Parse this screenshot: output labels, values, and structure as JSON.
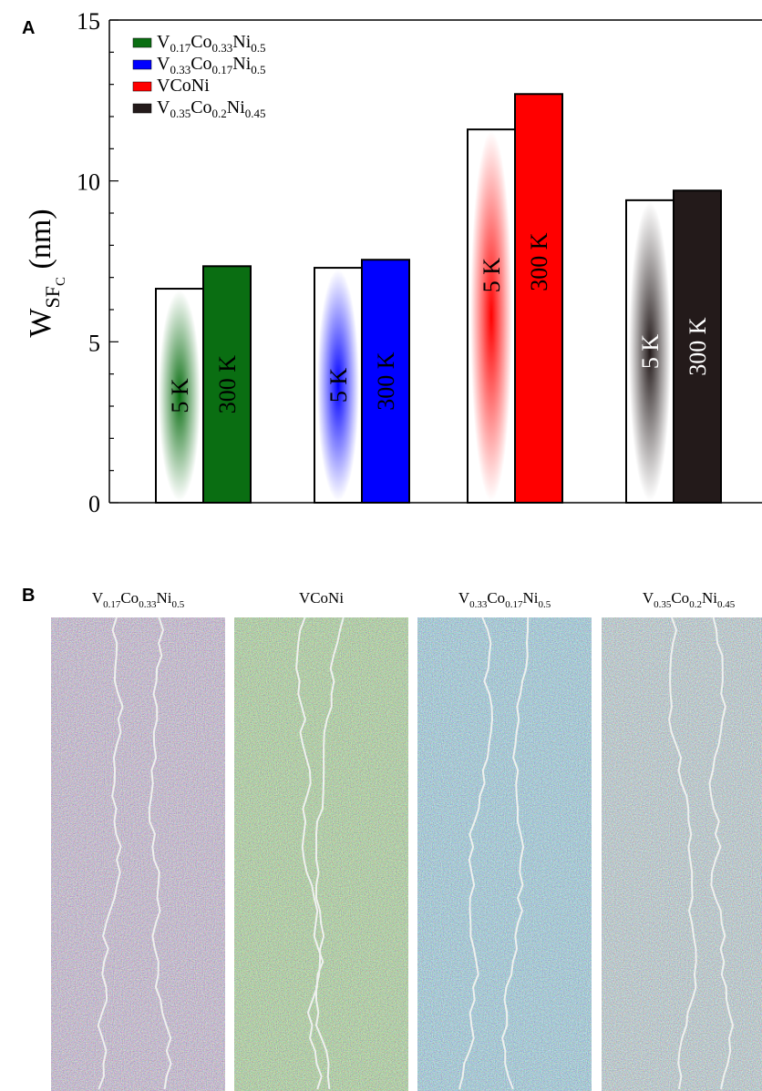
{
  "panels": {
    "a": "A",
    "b": "B"
  },
  "colors": {
    "green": "#0a6e12",
    "blue": "#0000ff",
    "red": "#ff0000",
    "black": "#231a1a",
    "trace": "#eef0ee"
  },
  "chart_data": {
    "type": "bar",
    "ylabel": {
      "main": "W",
      "sub1": "SF",
      "sub2": "C",
      "unit": " (nm)"
    },
    "ylim": [
      0,
      15
    ],
    "yticks": [
      0,
      5,
      10,
      15
    ],
    "bar_labels": [
      "5 K",
      "300 K"
    ],
    "legend_position": "top-left",
    "series": [
      {
        "name": "V0.17Co0.33Ni0.5",
        "name_parts": [
          [
            "V",
            ""
          ],
          [
            "0.17",
            "s"
          ],
          [
            "Co",
            ""
          ],
          [
            "0.33",
            "s"
          ],
          [
            "Ni",
            ""
          ],
          [
            "0.5",
            "s"
          ]
        ],
        "color": "#0a6e12",
        "values": [
          6.65,
          7.35
        ]
      },
      {
        "name": "V0.33Co0.17Ni0.5",
        "name_parts": [
          [
            "V",
            ""
          ],
          [
            "0.33",
            "s"
          ],
          [
            "Co",
            ""
          ],
          [
            "0.17",
            "s"
          ],
          [
            "Ni",
            ""
          ],
          [
            "0.5",
            "s"
          ]
        ],
        "color": "#0000ff",
        "values": [
          7.3,
          7.55
        ]
      },
      {
        "name": "VCoNi",
        "name_parts": [
          [
            "VCoNi",
            ""
          ]
        ],
        "color": "#ff0000",
        "values": [
          11.6,
          12.7
        ]
      },
      {
        "name": "V0.35Co0.2Ni0.45",
        "name_parts": [
          [
            "V",
            ""
          ],
          [
            "0.35",
            "s"
          ],
          [
            "Co",
            ""
          ],
          [
            "0.2",
            "s"
          ],
          [
            "Ni",
            ""
          ],
          [
            "0.45",
            "s"
          ]
        ],
        "color": "#231a1a",
        "values": [
          9.4,
          9.7
        ]
      }
    ]
  },
  "maps": [
    {
      "title_parts": [
        [
          "V",
          ""
        ],
        [
          "0.17",
          "s"
        ],
        [
          "Co",
          ""
        ],
        [
          "0.33",
          "s"
        ],
        [
          "Ni",
          ""
        ],
        [
          "0.5",
          "s"
        ]
      ],
      "base": "purple"
    },
    {
      "title_parts": [
        [
          "VCoNi",
          ""
        ]
      ],
      "base": "green"
    },
    {
      "title_parts": [
        [
          "V",
          ""
        ],
        [
          "0.33",
          "s"
        ],
        [
          "Co",
          ""
        ],
        [
          "0.17",
          "s"
        ],
        [
          "Ni",
          ""
        ],
        [
          "0.5",
          "s"
        ]
      ],
      "base": "blue"
    },
    {
      "title_parts": [
        [
          "V",
          ""
        ],
        [
          "0.35",
          "s"
        ],
        [
          "Co",
          ""
        ],
        [
          "0.2",
          "s"
        ],
        [
          "Ni",
          ""
        ],
        [
          "0.45",
          "s"
        ]
      ],
      "base": "mixed"
    }
  ]
}
